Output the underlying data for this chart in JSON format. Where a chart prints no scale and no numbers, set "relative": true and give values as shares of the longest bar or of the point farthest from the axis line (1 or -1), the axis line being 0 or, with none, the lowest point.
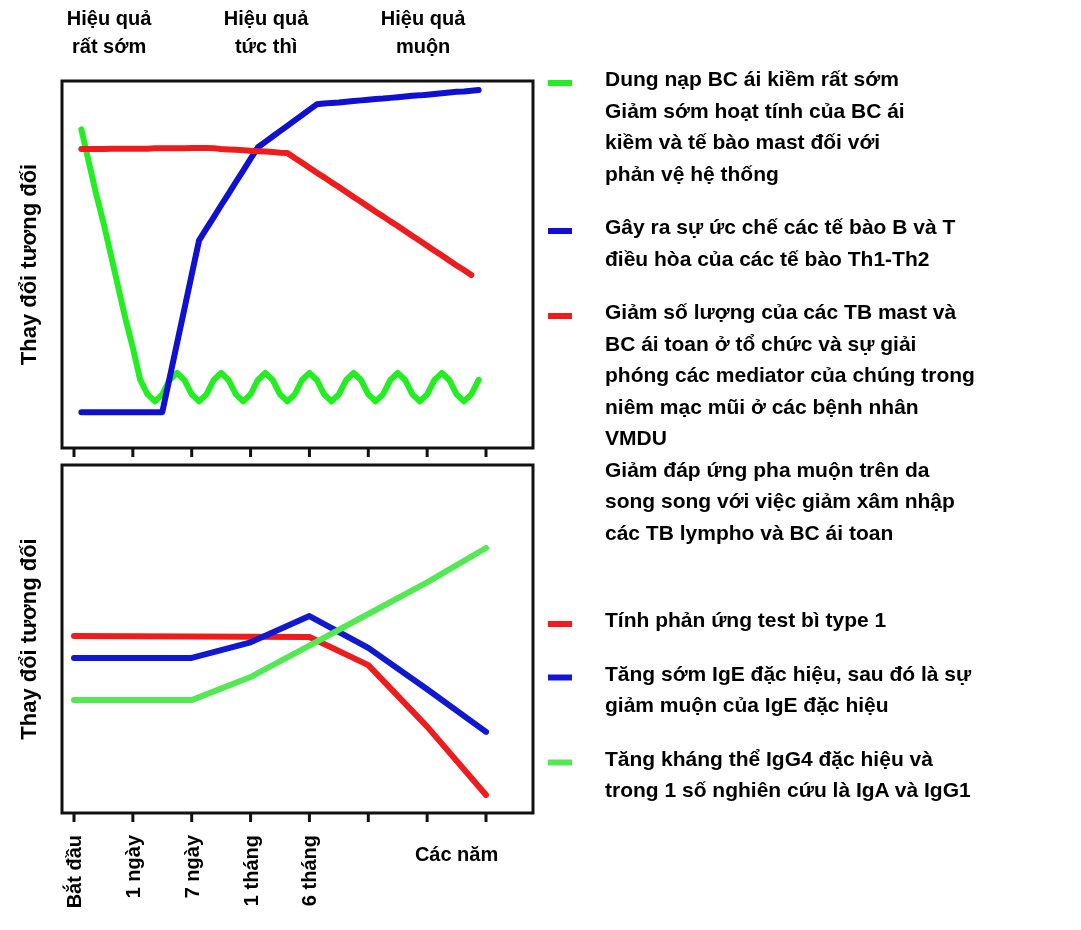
{
  "chart_data": [
    {
      "type": "line",
      "relative": true,
      "ylabel": "Thay đổi tương đối",
      "categories": [
        null,
        null,
        null,
        null,
        null,
        null,
        null,
        null,
        null,
        null,
        null,
        null,
        null,
        null,
        null,
        null,
        null,
        null,
        null,
        null,
        null,
        null,
        null,
        null,
        null,
        null,
        null,
        null,
        null,
        null,
        null,
        null,
        null,
        null,
        null,
        null,
        null,
        null,
        null,
        null,
        null,
        null,
        null,
        null,
        null,
        null,
        null,
        null,
        null,
        null,
        null,
        null,
        null,
        null,
        null,
        null,
        null
      ],
      "tick_labels": false,
      "legend": "right",
      "annotations": [
        "Hiệu quả\nrất sớm",
        "Hiệu quả\ntức thì",
        "Hiệu quả\nmuộn"
      ],
      "series": [
        {
          "name": "Dung nạp BC ái kiềm rất sớm\nGiảm sớm hoạt tính của BC ái\nkiềm và tế bào mast đối với\nphản vệ hệ thống",
          "color": "#22ee22",
          "values": [
            null,
            0.89,
            0.8,
            0.71,
            0.63,
            0.54,
            0.45,
            0.36,
            0.28,
            0.19,
            0.15,
            0.13,
            0.15,
            0.19,
            0.21,
            0.19,
            0.15,
            0.13,
            0.15,
            0.19,
            0.21,
            0.19,
            0.15,
            0.13,
            0.15,
            0.19,
            0.21,
            0.19,
            0.15,
            0.13,
            0.15,
            0.19,
            0.21,
            0.19,
            0.15,
            0.13,
            0.15,
            0.19,
            0.21,
            0.19,
            0.15,
            0.13,
            0.15,
            0.19,
            0.21,
            0.19,
            0.15,
            0.13,
            0.15,
            0.19,
            0.21,
            0.19,
            0.15,
            0.13,
            0.15,
            0.19,
            null
          ]
        },
        {
          "name": "Gây ra sự ức chế các tế bào B và T\nđiều hòa của các tế bào Th1-Th2",
          "color": "#1010d0",
          "values": [
            null,
            0.1,
            0.1,
            0.1,
            0.1,
            0.1,
            0.1,
            0.1,
            0.1,
            0.1,
            0.1,
            0.1,
            0.1,
            0.196,
            0.292,
            0.388,
            0.484,
            0.58,
            0.613,
            0.645,
            0.678,
            0.71,
            0.743,
            0.775,
            0.808,
            0.84,
            0.855,
            0.87,
            0.885,
            0.9,
            0.915,
            0.93,
            0.945,
            0.96,
            0.962,
            0.964,
            0.965,
            0.967,
            0.969,
            0.971,
            0.973,
            0.975,
            0.976,
            0.978,
            0.98,
            0.982,
            0.984,
            0.985,
            0.987,
            0.989,
            0.991,
            0.993,
            0.995,
            0.996,
            0.998,
            1.0,
            null
          ]
        },
        {
          "name": "Giảm số lượng của các TB mast và\nBC ái toan ở tổ chức và sự giải\nphóng các mediator của chúng trong\nniêm mạc mũi ở các bệnh nhân\nVMDU\nGiảm đáp ứng pha muộn trên da\nsong song với việc giảm xâm nhập\ncác TB lympho và BC ái toan",
          "color": "#ee1c1c",
          "values": [
            null,
            0.835,
            0.835,
            0.835,
            0.835,
            0.836,
            0.836,
            0.836,
            0.836,
            0.836,
            0.836,
            0.837,
            0.837,
            0.837,
            0.837,
            0.837,
            0.838,
            0.838,
            0.838,
            0.837,
            0.835,
            0.834,
            0.833,
            0.832,
            0.83,
            0.829,
            0.828,
            0.827,
            0.825,
            0.824,
            0.81,
            0.797,
            0.783,
            0.769,
            0.756,
            0.742,
            0.729,
            0.715,
            0.701,
            0.688,
            0.674,
            0.66,
            0.647,
            0.633,
            0.62,
            0.606,
            0.592,
            0.579,
            0.565,
            0.551,
            0.538,
            0.524,
            0.51,
            0.497,
            0.483,
            null,
            null
          ]
        }
      ]
    },
    {
      "type": "line",
      "relative": true,
      "ylabel": "Thay đổi tương đối",
      "xlabel": "Các năm",
      "categories": [
        "Bắt đầu",
        "1 ngày",
        "7 ngày",
        "1 tháng",
        "6 tháng",
        null,
        null,
        null
      ],
      "tick_labels": "x",
      "legend": "right",
      "series": [
        {
          "name": "Tính phản ứng test bì type 1",
          "color": "#ee1c1c",
          "values": [
            0.668,
            0.667,
            0.666,
            0.665,
            0.664,
            0.558,
            0.326,
            0.068
          ]
        },
        {
          "name": "Tăng sớm IgE đặc hiệu, sau đó là sự\ngiảm muộn của IgE đặc hiệu",
          "color": "#1018d0",
          "values": [
            0.585,
            0.585,
            0.585,
            0.644,
            0.743,
            0.623,
            0.467,
            0.306
          ]
        },
        {
          "name": "Tăng kháng thể IgG4 đặc hiệu và\ntrong 1 số nghiên cứu là IgA và IgG1",
          "color": "#55e855",
          "values": [
            0.426,
            0.426,
            0.426,
            0.513,
            0.632,
            0.751,
            0.87,
            1.0
          ]
        }
      ]
    }
  ]
}
